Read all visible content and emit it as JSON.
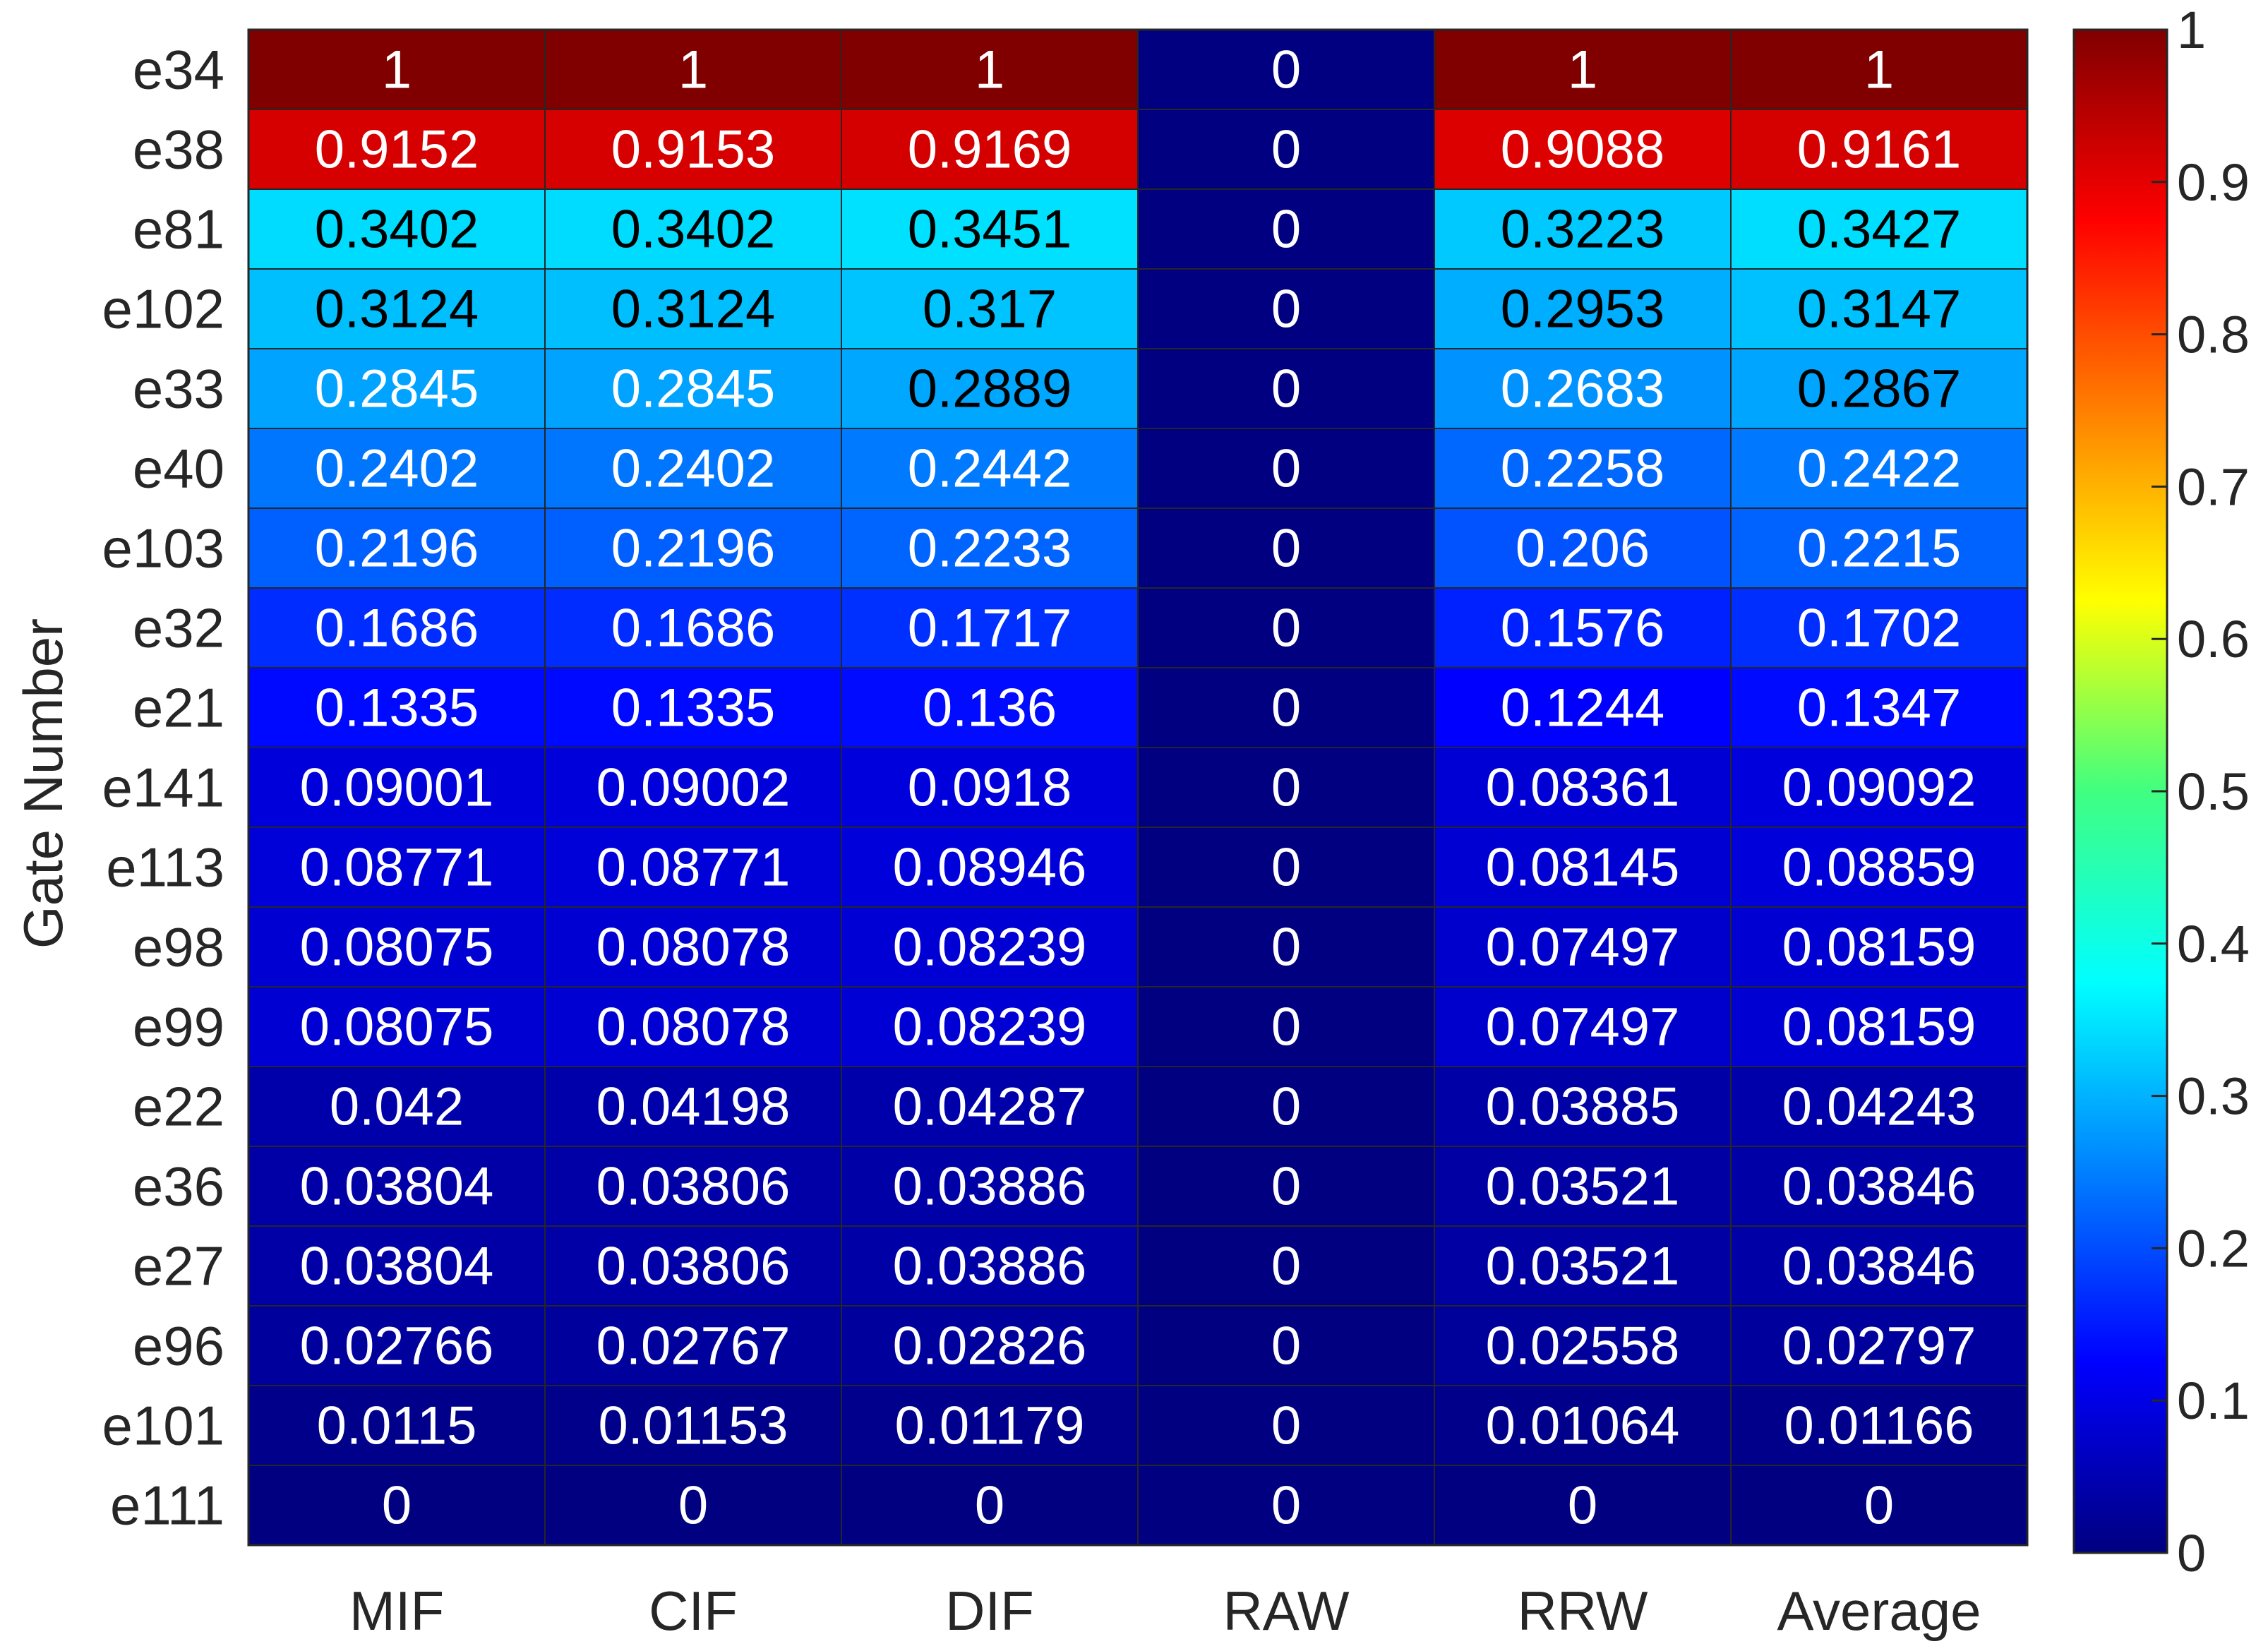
{
  "chart_data": {
    "type": "heatmap",
    "title": "",
    "xlabel": "",
    "ylabel": "Gate Number",
    "colormap": "jet",
    "clim": [
      0,
      1
    ],
    "colorbar_ticks": [
      "0",
      "0.1",
      "0.2",
      "0.3",
      "0.4",
      "0.5",
      "0.6",
      "0.7",
      "0.8",
      "0.9",
      "1"
    ],
    "x_categories": [
      "MIF",
      "CIF",
      "DIF",
      "RAW",
      "RRW",
      "Average"
    ],
    "y_categories": [
      "e34",
      "e38",
      "e81",
      "e102",
      "e33",
      "e40",
      "e103",
      "e32",
      "e21",
      "e141",
      "e113",
      "e98",
      "e99",
      "e22",
      "e36",
      "e27",
      "e96",
      "e101",
      "e111"
    ],
    "cells": [
      [
        "1",
        "1",
        "1",
        "0",
        "1",
        "1"
      ],
      [
        "0.9152",
        "0.9153",
        "0.9169",
        "0",
        "0.9088",
        "0.9161"
      ],
      [
        "0.3402",
        "0.3402",
        "0.3451",
        "0",
        "0.3223",
        "0.3427"
      ],
      [
        "0.3124",
        "0.3124",
        "0.317",
        "0",
        "0.2953",
        "0.3147"
      ],
      [
        "0.2845",
        "0.2845",
        "0.2889",
        "0",
        "0.2683",
        "0.2867"
      ],
      [
        "0.2402",
        "0.2402",
        "0.2442",
        "0",
        "0.2258",
        "0.2422"
      ],
      [
        "0.2196",
        "0.2196",
        "0.2233",
        "0",
        "0.206",
        "0.2215"
      ],
      [
        "0.1686",
        "0.1686",
        "0.1717",
        "0",
        "0.1576",
        "0.1702"
      ],
      [
        "0.1335",
        "0.1335",
        "0.136",
        "0",
        "0.1244",
        "0.1347"
      ],
      [
        "0.09001",
        "0.09002",
        "0.0918",
        "0",
        "0.08361",
        "0.09092"
      ],
      [
        "0.08771",
        "0.08771",
        "0.08946",
        "0",
        "0.08145",
        "0.08859"
      ],
      [
        "0.08075",
        "0.08078",
        "0.08239",
        "0",
        "0.07497",
        "0.08159"
      ],
      [
        "0.08075",
        "0.08078",
        "0.08239",
        "0",
        "0.07497",
        "0.08159"
      ],
      [
        "0.042",
        "0.04198",
        "0.04287",
        "0",
        "0.03885",
        "0.04243"
      ],
      [
        "0.03804",
        "0.03806",
        "0.03886",
        "0",
        "0.03521",
        "0.03846"
      ],
      [
        "0.03804",
        "0.03806",
        "0.03886",
        "0",
        "0.03521",
        "0.03846"
      ],
      [
        "0.02766",
        "0.02767",
        "0.02826",
        "0",
        "0.02558",
        "0.02797"
      ],
      [
        "0.0115",
        "0.01153",
        "0.01179",
        "0",
        "0.01064",
        "0.01166"
      ],
      [
        "0",
        "0",
        "0",
        "0",
        "0",
        "0"
      ]
    ]
  }
}
